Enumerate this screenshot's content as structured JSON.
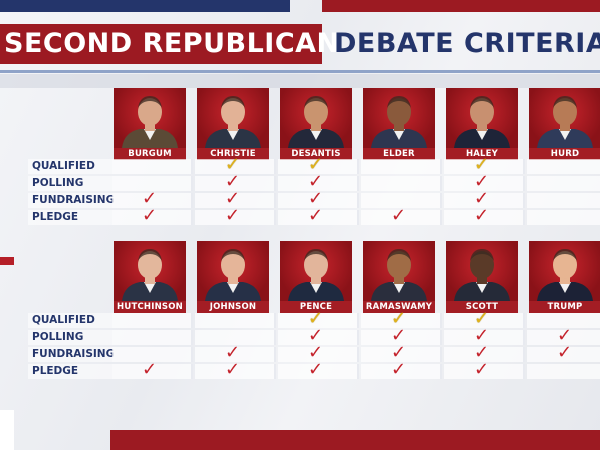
{
  "title": {
    "left": "SECOND REPUBLICAN",
    "right": "DEBATE CRITERIA"
  },
  "criteria": [
    "QUALIFIED",
    "POLLING",
    "FUNDRAISING",
    "PLEDGE"
  ],
  "groups": [
    {
      "candidates": [
        {
          "name": "BURGUM",
          "marks": {
            "QUALIFIED": "",
            "POLLING": "",
            "FUNDRAISING": "red",
            "PLEDGE": "red"
          }
        },
        {
          "name": "CHRISTIE",
          "marks": {
            "QUALIFIED": "gold",
            "POLLING": "red",
            "FUNDRAISING": "red",
            "PLEDGE": "red"
          }
        },
        {
          "name": "DESANTIS",
          "marks": {
            "QUALIFIED": "gold",
            "POLLING": "red",
            "FUNDRAISING": "red",
            "PLEDGE": "red"
          }
        },
        {
          "name": "ELDER",
          "marks": {
            "QUALIFIED": "",
            "POLLING": "",
            "FUNDRAISING": "",
            "PLEDGE": "red"
          }
        },
        {
          "name": "HALEY",
          "marks": {
            "QUALIFIED": "gold",
            "POLLING": "red",
            "FUNDRAISING": "red",
            "PLEDGE": "red"
          }
        },
        {
          "name": "HURD",
          "marks": {
            "QUALIFIED": "",
            "POLLING": "",
            "FUNDRAISING": "",
            "PLEDGE": ""
          }
        }
      ]
    },
    {
      "candidates": [
        {
          "name": "HUTCHINSON",
          "marks": {
            "QUALIFIED": "",
            "POLLING": "",
            "FUNDRAISING": "",
            "PLEDGE": "red"
          }
        },
        {
          "name": "JOHNSON",
          "marks": {
            "QUALIFIED": "",
            "POLLING": "",
            "FUNDRAISING": "red",
            "PLEDGE": "red"
          }
        },
        {
          "name": "PENCE",
          "marks": {
            "QUALIFIED": "gold",
            "POLLING": "red",
            "FUNDRAISING": "red",
            "PLEDGE": "red"
          }
        },
        {
          "name": "RAMASWAMY",
          "marks": {
            "QUALIFIED": "gold",
            "POLLING": "red",
            "FUNDRAISING": "red",
            "PLEDGE": "red"
          }
        },
        {
          "name": "SCOTT",
          "marks": {
            "QUALIFIED": "gold",
            "POLLING": "red",
            "FUNDRAISING": "red",
            "PLEDGE": "red"
          }
        },
        {
          "name": "TRUMP",
          "marks": {
            "QUALIFIED": "",
            "POLLING": "red",
            "FUNDRAISING": "red",
            "PLEDGE": ""
          }
        }
      ]
    }
  ],
  "check_glyph": "✓",
  "colors": {
    "navy": "#24356b",
    "red": "#9c1a22",
    "check_red": "#c4232c",
    "check_gold": "#e0b21a"
  }
}
